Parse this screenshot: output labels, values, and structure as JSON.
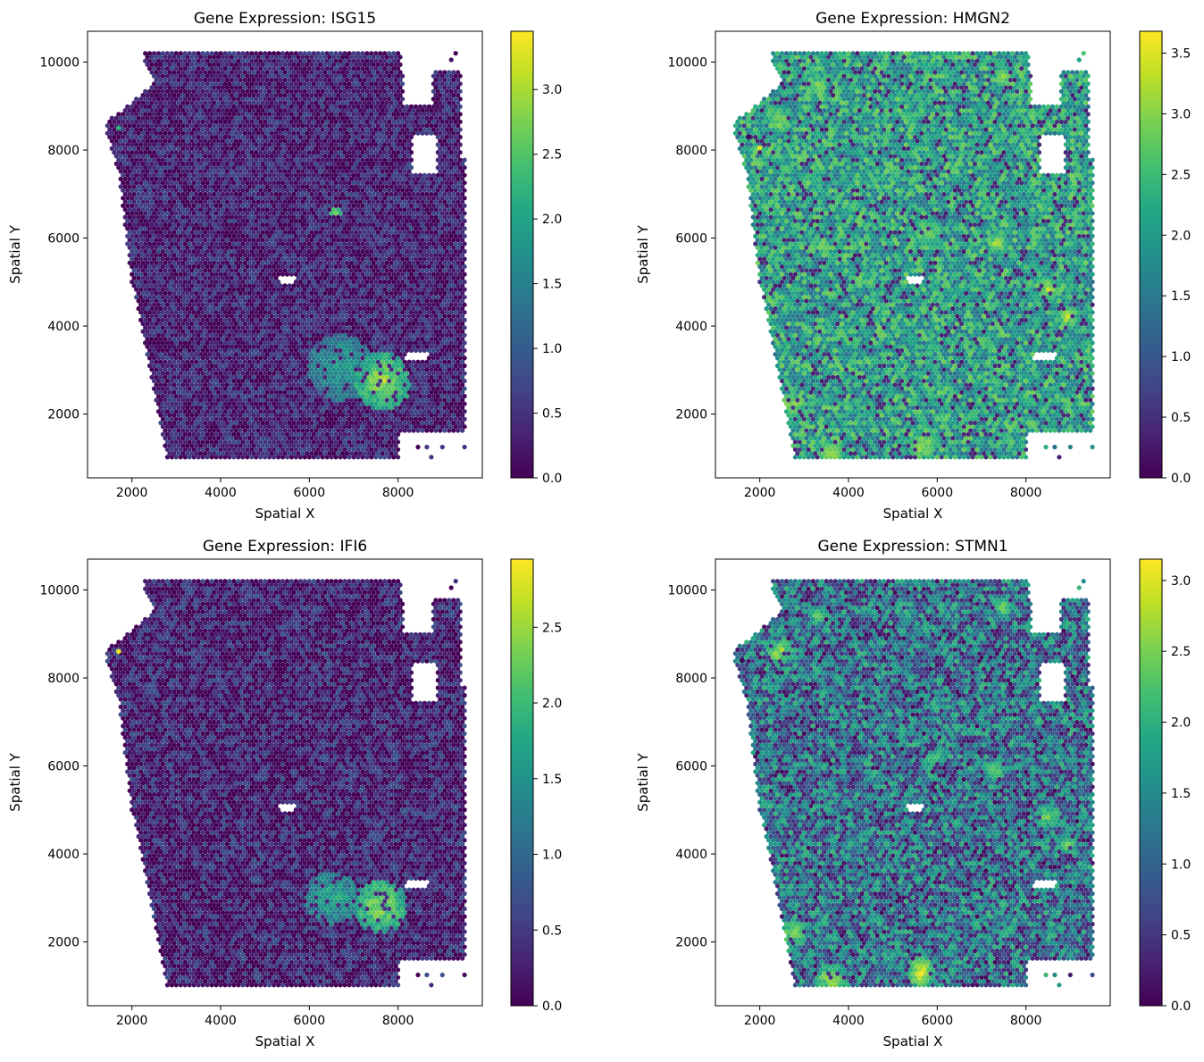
{
  "chart_data": [
    {
      "type": "scatter",
      "title": "Gene Expression: ISG15",
      "xlabel": "Spatial X",
      "ylabel": "Spatial Y",
      "xlim": [
        1000,
        9900
      ],
      "ylim": [
        550,
        10700
      ],
      "xticks": [
        2000,
        4000,
        6000,
        8000
      ],
      "yticks": [
        2000,
        4000,
        6000,
        8000,
        10000
      ],
      "colormap": "viridis",
      "colorbar": {
        "min": 0.0,
        "max": 3.45,
        "ticks": [
          "0.0",
          "0.5",
          "1.0",
          "1.5",
          "2.0",
          "2.5",
          "3.0"
        ],
        "tick_values": [
          0,
          0.5,
          1,
          1.5,
          2,
          2.5,
          3
        ]
      },
      "background": {
        "mean": 0.35,
        "spread": 0.5
      },
      "hotspots": [
        {
          "x": 7650,
          "y": 2750,
          "radius": 650,
          "value": 3.0
        },
        {
          "x": 6700,
          "y": 3050,
          "radius": 750,
          "value": 1.9
        },
        {
          "x": 6600,
          "y": 6600,
          "radius": 120,
          "value": 3.2
        }
      ],
      "outliers": [
        {
          "x": 1700,
          "y": 8500,
          "value": 2.2
        }
      ]
    },
    {
      "type": "scatter",
      "title": "Gene Expression: HMGN2",
      "xlabel": "Spatial X",
      "ylabel": "Spatial Y",
      "xlim": [
        1000,
        9900
      ],
      "ylim": [
        550,
        10700
      ],
      "xticks": [
        2000,
        4000,
        6000,
        8000
      ],
      "yticks": [
        2000,
        4000,
        6000,
        8000,
        10000
      ],
      "colormap": "viridis",
      "colorbar": {
        "min": 0.0,
        "max": 3.68,
        "ticks": [
          "0.0",
          "0.5",
          "1.0",
          "1.5",
          "2.0",
          "2.5",
          "3.0",
          "3.5"
        ],
        "tick_values": [
          0,
          0.5,
          1,
          1.5,
          2,
          2.5,
          3,
          3.5
        ]
      },
      "background": {
        "mean": 2.1,
        "spread": 0.8
      },
      "hotspots": [
        {
          "x": 2450,
          "y": 8650,
          "radius": 300,
          "value": 3.1
        },
        {
          "x": 3300,
          "y": 9500,
          "radius": 200,
          "value": 3.2
        },
        {
          "x": 7500,
          "y": 9650,
          "radius": 250,
          "value": 3.2
        },
        {
          "x": 5800,
          "y": 6150,
          "radius": 350,
          "value": 3.0
        },
        {
          "x": 7350,
          "y": 5900,
          "radius": 250,
          "value": 3.2
        },
        {
          "x": 8500,
          "y": 4850,
          "radius": 300,
          "value": 3.2
        },
        {
          "x": 8950,
          "y": 4200,
          "radius": 280,
          "value": 3.3
        },
        {
          "x": 2750,
          "y": 2200,
          "radius": 300,
          "value": 3.3
        },
        {
          "x": 3600,
          "y": 1100,
          "radius": 350,
          "value": 3.2
        },
        {
          "x": 5650,
          "y": 1300,
          "radius": 350,
          "value": 3.3
        },
        {
          "x": 9200,
          "y": 3300,
          "radius": 200,
          "value": 3.0
        },
        {
          "x": 4200,
          "y": 5100,
          "radius": 250,
          "value": 2.9
        }
      ],
      "outliers": [
        {
          "x": 1750,
          "y": 8300,
          "value": 0.0
        },
        {
          "x": 2000,
          "y": 8050,
          "value": 3.5
        }
      ]
    },
    {
      "type": "scatter",
      "title": "Gene Expression: IFI6",
      "xlabel": "Spatial X",
      "ylabel": "Spatial Y",
      "xlim": [
        1000,
        9900
      ],
      "ylim": [
        550,
        10700
      ],
      "xticks": [
        2000,
        4000,
        6000,
        8000
      ],
      "yticks": [
        2000,
        4000,
        6000,
        8000,
        10000
      ],
      "colormap": "viridis",
      "colorbar": {
        "min": 0.0,
        "max": 2.95,
        "ticks": [
          "0.0",
          "0.5",
          "1.0",
          "1.5",
          "2.0",
          "2.5"
        ],
        "tick_values": [
          0,
          0.5,
          1,
          1.5,
          2,
          2.5
        ]
      },
      "background": {
        "mean": 0.3,
        "spread": 0.5
      },
      "hotspots": [
        {
          "x": 7600,
          "y": 2800,
          "radius": 600,
          "value": 2.5
        },
        {
          "x": 6500,
          "y": 3000,
          "radius": 600,
          "value": 1.8
        }
      ],
      "outliers": [
        {
          "x": 1700,
          "y": 8600,
          "value": 2.9
        }
      ]
    },
    {
      "type": "scatter",
      "title": "Gene Expression: STMN1",
      "xlabel": "Spatial X",
      "ylabel": "Spatial Y",
      "xlim": [
        1000,
        9900
      ],
      "ylim": [
        550,
        10700
      ],
      "xticks": [
        2000,
        4000,
        6000,
        8000
      ],
      "yticks": [
        2000,
        4000,
        6000,
        8000,
        10000
      ],
      "colormap": "viridis",
      "colorbar": {
        "min": 0.0,
        "max": 3.15,
        "ticks": [
          "0.0",
          "0.5",
          "1.0",
          "1.5",
          "2.0",
          "2.5",
          "3.0"
        ],
        "tick_values": [
          0,
          0.5,
          1,
          1.5,
          2,
          2.5,
          3
        ]
      },
      "background": {
        "mean": 1.2,
        "spread": 0.9
      },
      "hotspots": [
        {
          "x": 2450,
          "y": 8600,
          "radius": 280,
          "value": 2.8
        },
        {
          "x": 3300,
          "y": 9450,
          "radius": 220,
          "value": 2.4
        },
        {
          "x": 7500,
          "y": 9600,
          "radius": 220,
          "value": 2.5
        },
        {
          "x": 5900,
          "y": 6200,
          "radius": 300,
          "value": 2.3
        },
        {
          "x": 7300,
          "y": 5900,
          "radius": 230,
          "value": 2.5
        },
        {
          "x": 8500,
          "y": 4850,
          "radius": 280,
          "value": 2.6
        },
        {
          "x": 8900,
          "y": 4200,
          "radius": 250,
          "value": 2.5
        },
        {
          "x": 2750,
          "y": 2200,
          "radius": 300,
          "value": 2.7
        },
        {
          "x": 3600,
          "y": 1150,
          "radius": 350,
          "value": 2.8
        },
        {
          "x": 5650,
          "y": 1300,
          "radius": 350,
          "value": 3.0
        }
      ],
      "outliers": [
        {
          "x": 1600,
          "y": 8400,
          "value": 0.0
        }
      ]
    }
  ]
}
